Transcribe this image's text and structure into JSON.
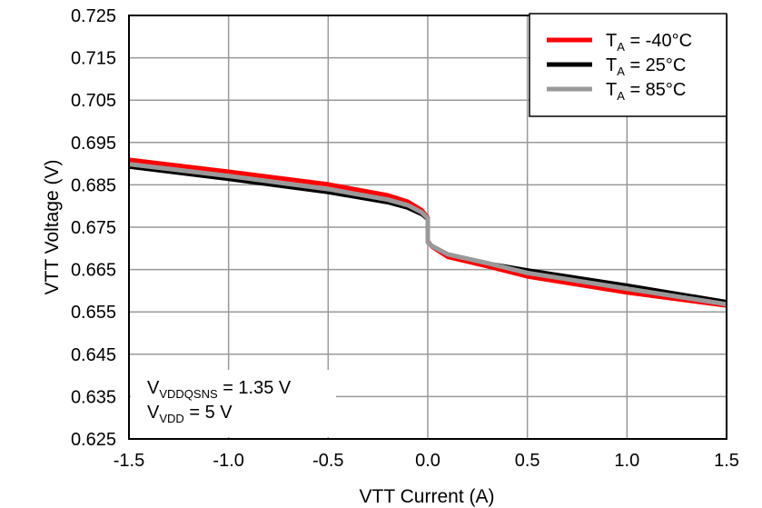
{
  "chart_data": {
    "type": "line",
    "xlabel": "VTT Current (A)",
    "ylabel": "VTT Voltage (V)",
    "xlim": [
      -1.5,
      1.5
    ],
    "ylim": [
      0.625,
      0.725
    ],
    "xticks": [
      "-1.5",
      "-1.0",
      "-0.5",
      "0.0",
      "0.5",
      "1.0",
      "1.5"
    ],
    "yticks": [
      "0.725",
      "0.715",
      "0.705",
      "0.695",
      "0.685",
      "0.675",
      "0.665",
      "0.655",
      "0.645",
      "0.635",
      "0.625"
    ],
    "grid": true,
    "legend_position": "top-right",
    "series": [
      {
        "name": "T_A = -40°C",
        "label_main": "T",
        "label_sub": "A",
        "label_rest": " = -40°C",
        "color": "#ff0000",
        "x": [
          -1.5,
          -1.0,
          -0.5,
          -0.2,
          -0.1,
          -0.03,
          0.0,
          0.0,
          0.02,
          0.1,
          0.3,
          0.5,
          1.0,
          1.5
        ],
        "y": [
          0.6909,
          0.6881,
          0.6851,
          0.6825,
          0.681,
          0.679,
          0.6772,
          0.6716,
          0.6705,
          0.668,
          0.6658,
          0.6634,
          0.6596,
          0.6565
        ]
      },
      {
        "name": "T_A = 25°C",
        "label_main": "T",
        "label_sub": "A",
        "label_rest": " = 25°C",
        "color": "#000000",
        "x": [
          -1.5,
          -1.0,
          -0.5,
          -0.2,
          -0.1,
          -0.03,
          0.0,
          0.0,
          0.02,
          0.1,
          0.3,
          0.5,
          1.0,
          1.5
        ],
        "y": [
          0.6892,
          0.6863,
          0.6832,
          0.6808,
          0.6795,
          0.678,
          0.6768,
          0.6714,
          0.6705,
          0.6683,
          0.6665,
          0.6649,
          0.6613,
          0.6574
        ]
      },
      {
        "name": "T_A = 85°C",
        "label_main": "T",
        "label_sub": "A",
        "label_rest": " = 85°C",
        "color": "#999999",
        "x": [
          -1.5,
          -1.0,
          -0.5,
          -0.2,
          -0.1,
          -0.03,
          0.0,
          0.0,
          0.02,
          0.1,
          0.3,
          0.5,
          1.0,
          1.5
        ],
        "y": [
          0.6899,
          0.6871,
          0.684,
          0.6815,
          0.6802,
          0.6785,
          0.6771,
          0.6714,
          0.6706,
          0.6686,
          0.6665,
          0.6642,
          0.6605,
          0.6568
        ]
      }
    ],
    "annotations": [
      {
        "main": "V",
        "sub": "VDDQSNS",
        "rest": " = 1.35 V"
      },
      {
        "main": "V",
        "sub": "VDD",
        "rest": " = 5 V"
      }
    ]
  }
}
